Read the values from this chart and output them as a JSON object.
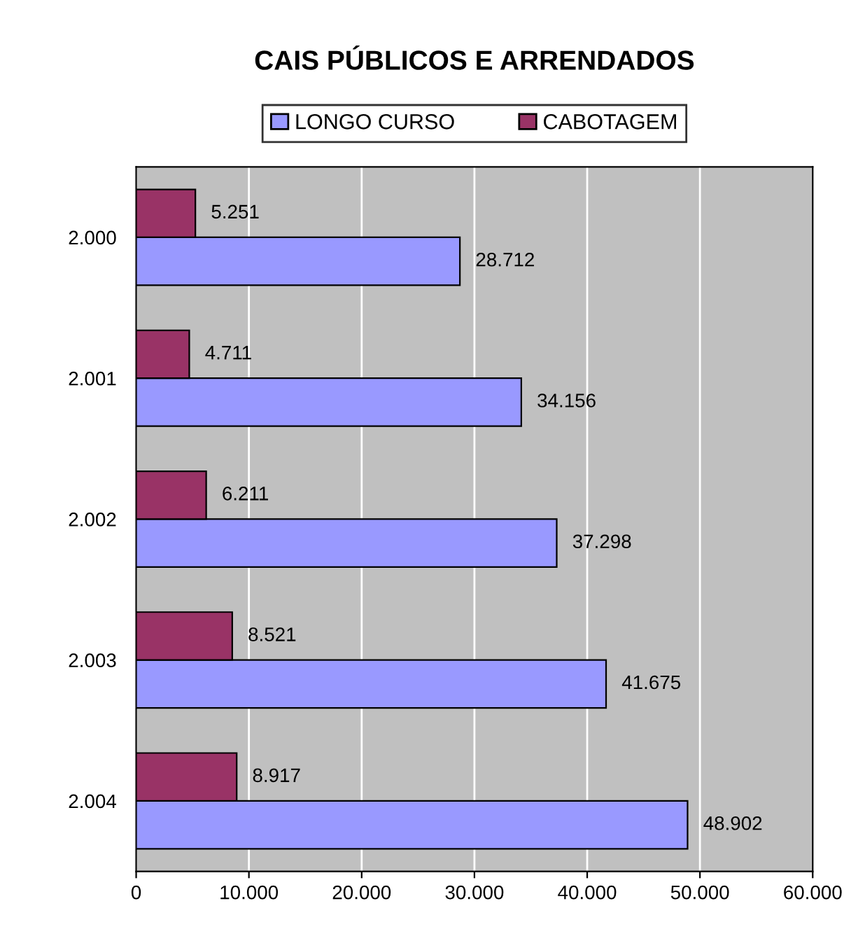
{
  "chart_data": {
    "type": "bar",
    "orientation": "horizontal",
    "title": "CAIS PÚBLICOS E ARRENDADOS",
    "categories": [
      "2.000",
      "2.001",
      "2.002",
      "2.003",
      "2.004"
    ],
    "series": [
      {
        "name": "LONGO CURSO",
        "color": "#9999ff",
        "values": [
          28712,
          34156,
          37298,
          41675,
          48902
        ],
        "value_labels": [
          "28.712",
          "34.156",
          "37.298",
          "41.675",
          "48.902"
        ]
      },
      {
        "name": "CABOTAGEM",
        "color": "#993366",
        "values": [
          5251,
          4711,
          6211,
          8521,
          8917
        ],
        "value_labels": [
          "5.251",
          "4.711",
          "6.211",
          "8.521",
          "8.917"
        ]
      }
    ],
    "xlim": [
      0,
      60000
    ],
    "xticks": [
      {
        "value": 0,
        "label": "0"
      },
      {
        "value": 10000,
        "label": "10.000"
      },
      {
        "value": 20000,
        "label": "20.000"
      },
      {
        "value": 30000,
        "label": "30.000"
      },
      {
        "value": 40000,
        "label": "40.000"
      },
      {
        "value": 50000,
        "label": "50.000"
      },
      {
        "value": 60000,
        "label": "60.000"
      }
    ],
    "grid": "x",
    "legend": "top"
  }
}
